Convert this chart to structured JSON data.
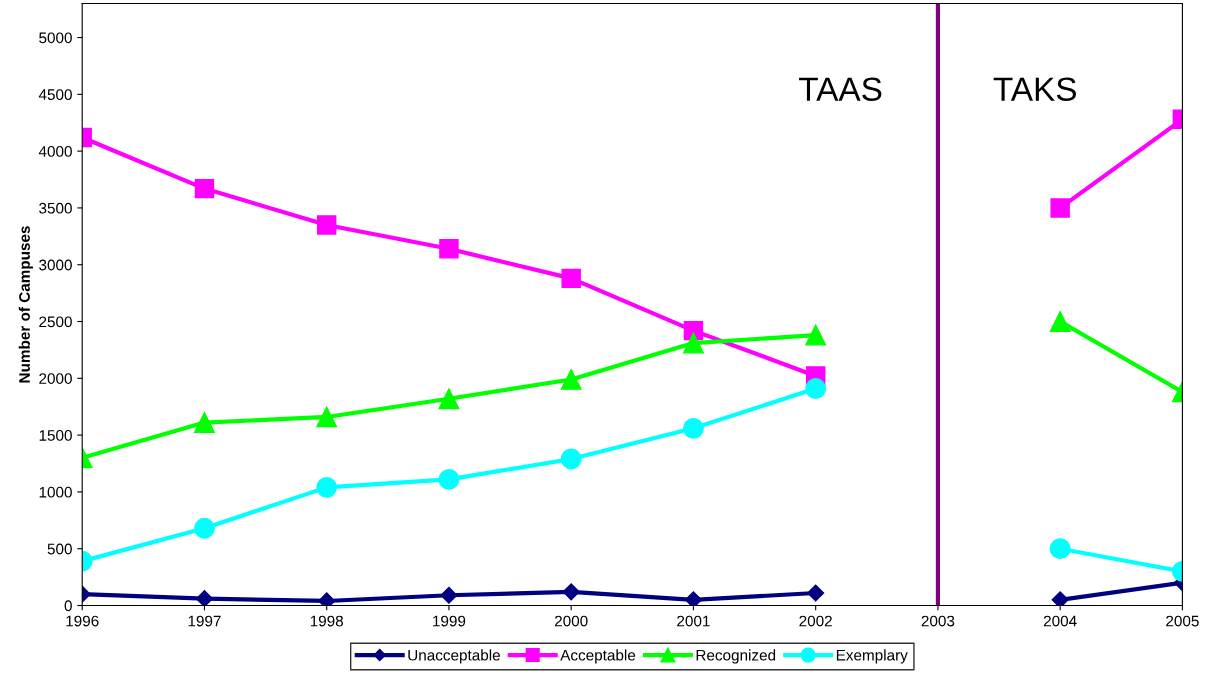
{
  "chart_data": {
    "type": "line",
    "ylabel": "Number of Campuses",
    "categories": [
      "1996",
      "1997",
      "1998",
      "1999",
      "2000",
      "2001",
      "2002",
      "2003",
      "2004",
      "2005"
    ],
    "series": [
      {
        "name": "Unacceptable",
        "color": "#000080",
        "marker": "diamond",
        "values": [
          100,
          60,
          40,
          90,
          120,
          50,
          110,
          null,
          50,
          200
        ]
      },
      {
        "name": "Acceptable",
        "color": "#ff00ff",
        "marker": "square",
        "values": [
          4120,
          3670,
          3350,
          3140,
          2880,
          2420,
          2020,
          null,
          3500,
          4280
        ]
      },
      {
        "name": "Recognized",
        "color": "#00ff00",
        "marker": "triangle",
        "values": [
          1300,
          1610,
          1660,
          1820,
          1990,
          2310,
          2380,
          null,
          2500,
          1880
        ]
      },
      {
        "name": "Exemplary",
        "color": "#00ffff",
        "marker": "circle",
        "values": [
          390,
          680,
          1040,
          1110,
          1290,
          1560,
          1910,
          null,
          500,
          300
        ]
      }
    ],
    "ylim": [
      0,
      5300
    ],
    "yticks": [
      0,
      500,
      1000,
      1500,
      2000,
      2500,
      3000,
      3500,
      4000,
      4500,
      5000
    ],
    "ref_lines": [
      {
        "axis": "x",
        "value": "2003",
        "color": "#800080"
      }
    ],
    "annotations": [
      "TAAS",
      "TAKS"
    ],
    "grid": false,
    "legend": "bottom",
    "line_style": "solid"
  }
}
